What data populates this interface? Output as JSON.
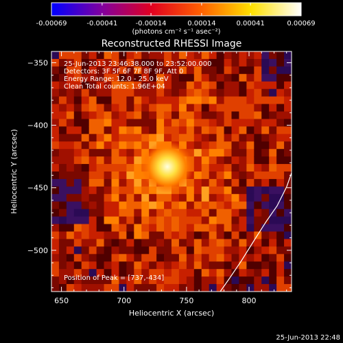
{
  "chart_data": {
    "type": "heatmap",
    "title": "Reconstructed RHESSI Image",
    "xlabel": "Heliocentric X (arcsec)",
    "ylabel": "Heliocentric Y (arcsec)",
    "xlim": [
      642,
      834
    ],
    "ylim": [
      -533,
      -341
    ],
    "xticks": [
      650,
      700,
      750,
      800
    ],
    "yticks": [
      -350,
      -400,
      -450,
      -500
    ],
    "colorbar": {
      "label": "(photons cm⁻² s⁻¹ asec⁻²)",
      "range": [
        -0.00069,
        0.00069
      ],
      "ticks": [
        "-0.00069",
        "-0.00041",
        "-0.00014",
        "0.00014",
        "0.00041",
        "0.00069"
      ],
      "colormap": [
        "#0000ff",
        "#8000a0",
        "#e00020",
        "#ff6000",
        "#ffe000",
        "#ffffff"
      ]
    },
    "annotations": [
      "25-Jun-2013 23:46:38.000 to 23:52:00.000",
      "Detectors: 3F 5F 6F 7F 8F 9F, Att 0",
      "Energy Range: 12.0 - 25.0 keV",
      "Clean     Total counts: 1.96E+04"
    ],
    "peak_label": "Position of Peak = [737,-434]",
    "peak": {
      "x": 737,
      "y": -434
    },
    "limb_color": "#ffffff"
  },
  "footer": {
    "timestamp": "25-Jun-2013 22:48"
  }
}
